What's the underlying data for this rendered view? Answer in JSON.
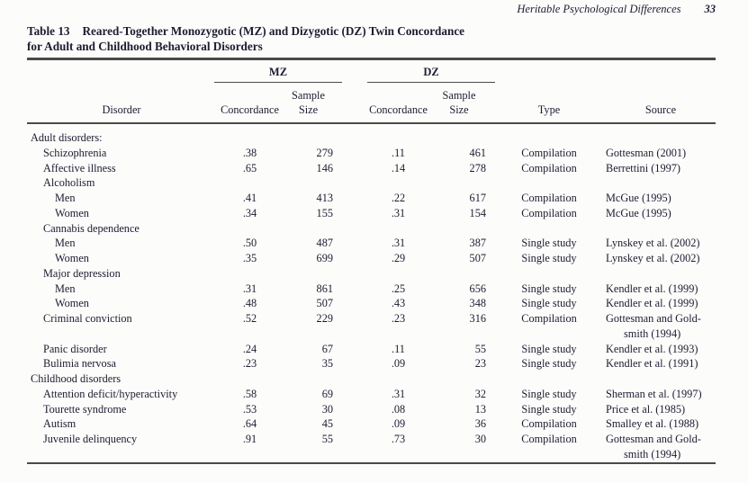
{
  "colors": {
    "ink": "#1c1c30",
    "rule": "#4a4a4a",
    "paper": "#fcfcfb"
  },
  "page": {
    "running_head": "Heritable Psychological Differences",
    "page_number": "33"
  },
  "table": {
    "title_label": "Table 13",
    "title_text": "Reared-Together Monozygotic (MZ) and Dizygotic (DZ) Twin Concordance",
    "title_line2": "for Adult and Childhood Behavioral Disorders",
    "headers": {
      "disorder": "Disorder",
      "mz_group": "MZ",
      "dz_group": "DZ",
      "concordance": "Concordance",
      "sample_line1": "Sample",
      "sample_line2": "Size",
      "type": "Type",
      "source": "Source"
    },
    "rows": [
      {
        "label": "Adult disorders:",
        "indent": 0
      },
      {
        "label": "Schizophrenia",
        "indent": 1,
        "mz_c": ".38",
        "mz_n": "279",
        "dz_c": ".11",
        "dz_n": "461",
        "type": "Compilation",
        "source": "Gottesman (2001)"
      },
      {
        "label": "Affective illness",
        "indent": 1,
        "mz_c": ".65",
        "mz_n": "146",
        "dz_c": ".14",
        "dz_n": "278",
        "type": "Compilation",
        "source": "Berrettini (1997)"
      },
      {
        "label": "Alcoholism",
        "indent": 1
      },
      {
        "label": "Men",
        "indent": 2,
        "mz_c": ".41",
        "mz_n": "413",
        "dz_c": ".22",
        "dz_n": "617",
        "type": "Compilation",
        "source": "McGue (1995)"
      },
      {
        "label": "Women",
        "indent": 2,
        "mz_c": ".34",
        "mz_n": "155",
        "dz_c": ".31",
        "dz_n": "154",
        "type": "Compilation",
        "source": "McGue (1995)"
      },
      {
        "label": "Cannabis dependence",
        "indent": 1
      },
      {
        "label": "Men",
        "indent": 2,
        "mz_c": ".50",
        "mz_n": "487",
        "dz_c": ".31",
        "dz_n": "387",
        "type": "Single study",
        "source": "Lynskey et al. (2002)"
      },
      {
        "label": "Women",
        "indent": 2,
        "mz_c": ".35",
        "mz_n": "699",
        "dz_c": ".29",
        "dz_n": "507",
        "type": "Single study",
        "source": "Lynskey et al. (2002)"
      },
      {
        "label": "Major depression",
        "indent": 1
      },
      {
        "label": "Men",
        "indent": 2,
        "mz_c": ".31",
        "mz_n": "861",
        "dz_c": ".25",
        "dz_n": "656",
        "type": "Single study",
        "source": "Kendler et al. (1999)"
      },
      {
        "label": "Women",
        "indent": 2,
        "mz_c": ".48",
        "mz_n": "507",
        "dz_c": ".43",
        "dz_n": "348",
        "type": "Single study",
        "source": "Kendler et al. (1999)"
      },
      {
        "label": "Criminal conviction",
        "indent": 1,
        "mz_c": ".52",
        "mz_n": "229",
        "dz_c": ".23",
        "dz_n": "316",
        "type": "Compilation",
        "source": "Gottesman and Gold-\nsmith (1994)"
      },
      {
        "label": "Panic disorder",
        "indent": 1,
        "mz_c": ".24",
        "mz_n": "67",
        "dz_c": ".11",
        "dz_n": "55",
        "type": "Single study",
        "source": "Kendler et al. (1993)"
      },
      {
        "label": "Bulimia nervosa",
        "indent": 1,
        "mz_c": ".23",
        "mz_n": "35",
        "dz_c": ".09",
        "dz_n": "23",
        "type": "Single study",
        "source": "Kendler et al. (1991)"
      },
      {
        "label": "Childhood disorders",
        "indent": 0
      },
      {
        "label": "Attention deficit/hyperactivity",
        "indent": 1,
        "mz_c": ".58",
        "mz_n": "69",
        "dz_c": ".31",
        "dz_n": "32",
        "type": "Single study",
        "source": "Sherman et al. (1997)"
      },
      {
        "label": "Tourette syndrome",
        "indent": 1,
        "mz_c": ".53",
        "mz_n": "30",
        "dz_c": ".08",
        "dz_n": "13",
        "type": "Single study",
        "source": "Price et al. (1985)"
      },
      {
        "label": "Autism",
        "indent": 1,
        "mz_c": ".64",
        "mz_n": "45",
        "dz_c": ".09",
        "dz_n": "36",
        "type": "Compilation",
        "source": "Smalley et al. (1988)"
      },
      {
        "label": "Juvenile delinquency",
        "indent": 1,
        "mz_c": ".91",
        "mz_n": "55",
        "dz_c": ".73",
        "dz_n": "30",
        "type": "Compilation",
        "source": "Gottesman and Gold-\nsmith (1994)"
      }
    ]
  }
}
